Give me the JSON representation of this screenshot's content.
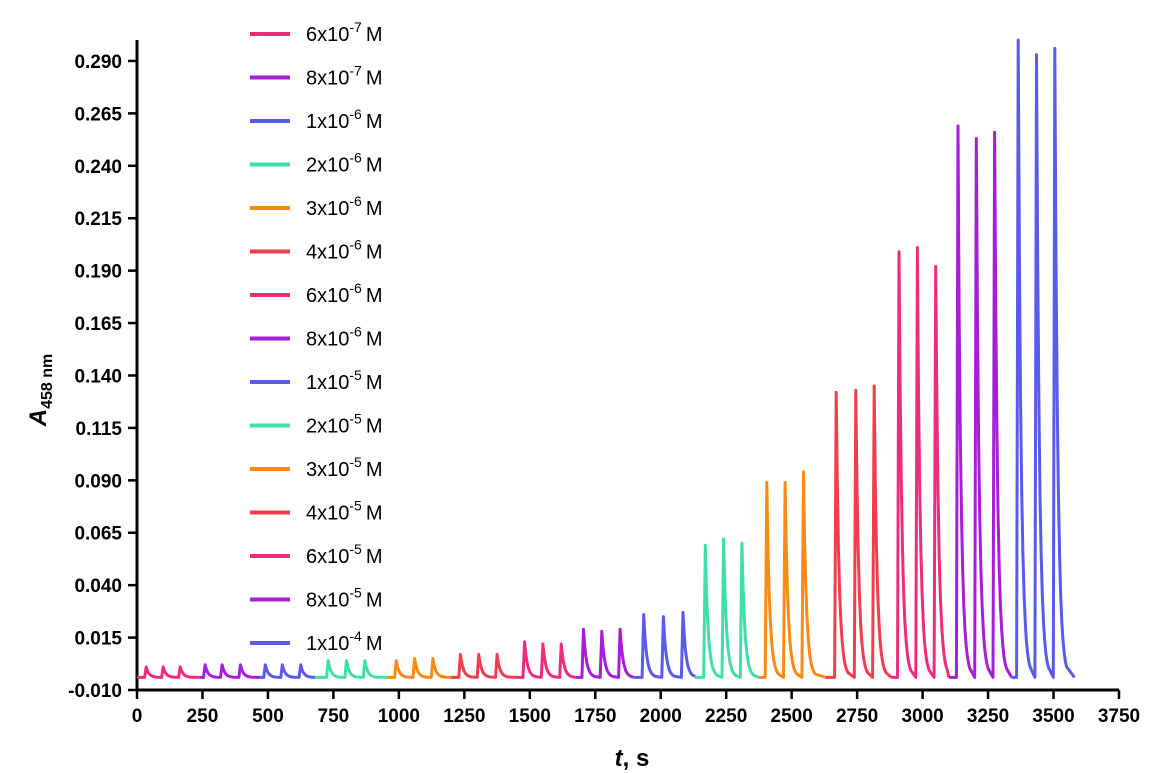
{
  "chart_data": {
    "type": "line",
    "xlabel": {
      "italic": "t",
      "rest": ", s"
    },
    "ylabel": {
      "italic": "A",
      "subscript": "458 nm"
    },
    "xlim": [
      0,
      3750
    ],
    "ylim": [
      -0.01,
      0.3
    ],
    "x_ticks": [
      "0",
      "250",
      "500",
      "750",
      "1000",
      "1250",
      "1500",
      "1750",
      "2000",
      "2250",
      "2500",
      "2750",
      "3000",
      "3250",
      "3500",
      "3750"
    ],
    "y_ticks": [
      "-0.010",
      "0.015",
      "0.040",
      "0.065",
      "0.090",
      "0.115",
      "0.140",
      "0.165",
      "0.190",
      "0.215",
      "0.240",
      "0.265",
      "0.290"
    ],
    "baseline": -0.004,
    "legend_position": "top-left",
    "series": [
      {
        "name": "6x10-7 M",
        "mantissa": "6x10",
        "exponent": "-7",
        "unit": "M",
        "color": "#EE2C7C",
        "x_start": 0,
        "x_end": 240,
        "peaks_x": [
          35,
          100,
          165
        ],
        "peaks_y": [
          0.001,
          0.001,
          0.001
        ]
      },
      {
        "name": "8x10-7 M",
        "mantissa": "8x10",
        "exponent": "-7",
        "unit": "M",
        "color": "#A61ED8",
        "x_start": 240,
        "x_end": 470,
        "peaks_x": [
          260,
          325,
          395
        ],
        "peaks_y": [
          0.002,
          0.002,
          0.002
        ]
      },
      {
        "name": "1x10-6 M",
        "mantissa": "1x10",
        "exponent": "-6",
        "unit": "M",
        "color": "#5A5AEC",
        "x_start": 470,
        "x_end": 680,
        "peaks_x": [
          490,
          555,
          625
        ],
        "peaks_y": [
          0.002,
          0.002,
          0.002
        ]
      },
      {
        "name": "2x10-6 M",
        "mantissa": "2x10",
        "exponent": "-6",
        "unit": "M",
        "color": "#3EE0A8",
        "x_start": 680,
        "x_end": 955,
        "peaks_x": [
          730,
          800,
          870
        ],
        "peaks_y": [
          0.004,
          0.004,
          0.004
        ]
      },
      {
        "name": "3x10-6 M",
        "mantissa": "3x10",
        "exponent": "-6",
        "unit": "M",
        "color": "#FB8A12",
        "x_start": 955,
        "x_end": 1200,
        "peaks_x": [
          990,
          1060,
          1130
        ],
        "peaks_y": [
          0.004,
          0.005,
          0.005
        ]
      },
      {
        "name": "4x10-6 M",
        "mantissa": "4x10",
        "exponent": "-6",
        "unit": "M",
        "color": "#F03E4E",
        "x_start": 1200,
        "x_end": 1445,
        "peaks_x": [
          1235,
          1305,
          1375
        ],
        "peaks_y": [
          0.007,
          0.007,
          0.007
        ]
      },
      {
        "name": "6x10-6 M",
        "mantissa": "6x10",
        "exponent": "-6",
        "unit": "M",
        "color": "#EE2C7C",
        "x_start": 1445,
        "x_end": 1675,
        "peaks_x": [
          1480,
          1550,
          1620
        ],
        "peaks_y": [
          0.013,
          0.012,
          0.012
        ]
      },
      {
        "name": "8x10-6 M",
        "mantissa": "8x10",
        "exponent": "-6",
        "unit": "M",
        "color": "#A61ED8",
        "x_start": 1675,
        "x_end": 1895,
        "peaks_x": [
          1705,
          1775,
          1845
        ],
        "peaks_y": [
          0.019,
          0.018,
          0.019
        ]
      },
      {
        "name": "1x10-5 M",
        "mantissa": "1x10",
        "exponent": "-5",
        "unit": "M",
        "color": "#5A5AEC",
        "x_start": 1895,
        "x_end": 2130,
        "peaks_x": [
          1935,
          2010,
          2085
        ],
        "peaks_y": [
          0.026,
          0.025,
          0.027
        ]
      },
      {
        "name": "2x10-5 M",
        "mantissa": "2x10",
        "exponent": "-5",
        "unit": "M",
        "color": "#3EE0A8",
        "x_start": 2130,
        "x_end": 2375,
        "peaks_x": [
          2170,
          2240,
          2310
        ],
        "peaks_y": [
          0.059,
          0.062,
          0.06
        ]
      },
      {
        "name": "3x10-5 M",
        "mantissa": "3x10",
        "exponent": "-5",
        "unit": "M",
        "color": "#FB8A12",
        "x_start": 2375,
        "x_end": 2630,
        "peaks_x": [
          2405,
          2475,
          2545
        ],
        "peaks_y": [
          0.089,
          0.089,
          0.094
        ]
      },
      {
        "name": "4x10-5 M",
        "mantissa": "4x10",
        "exponent": "-5",
        "unit": "M",
        "color": "#F03E4E",
        "x_start": 2630,
        "x_end": 2880,
        "peaks_x": [
          2670,
          2745,
          2815
        ],
        "peaks_y": [
          0.132,
          0.133,
          0.135
        ]
      },
      {
        "name": "6x10-5 M",
        "mantissa": "6x10",
        "exponent": "-5",
        "unit": "M",
        "color": "#EE2C7C",
        "x_start": 2880,
        "x_end": 3100,
        "peaks_x": [
          2910,
          2980,
          3050
        ],
        "peaks_y": [
          0.199,
          0.201,
          0.192
        ]
      },
      {
        "name": "8x10-5 M",
        "mantissa": "8x10",
        "exponent": "-5",
        "unit": "M",
        "color": "#A61ED8",
        "x_start": 3100,
        "x_end": 3340,
        "peaks_x": [
          3135,
          3205,
          3275
        ],
        "peaks_y": [
          0.259,
          0.253,
          0.256
        ]
      },
      {
        "name": "1x10-4 M",
        "mantissa": "1x10",
        "exponent": "-4",
        "unit": "M",
        "color": "#5A5AEC",
        "x_start": 3340,
        "x_end": 3580,
        "peaks_x": [
          3365,
          3435,
          3505
        ],
        "peaks_y": [
          0.3,
          0.293,
          0.296
        ]
      }
    ]
  }
}
